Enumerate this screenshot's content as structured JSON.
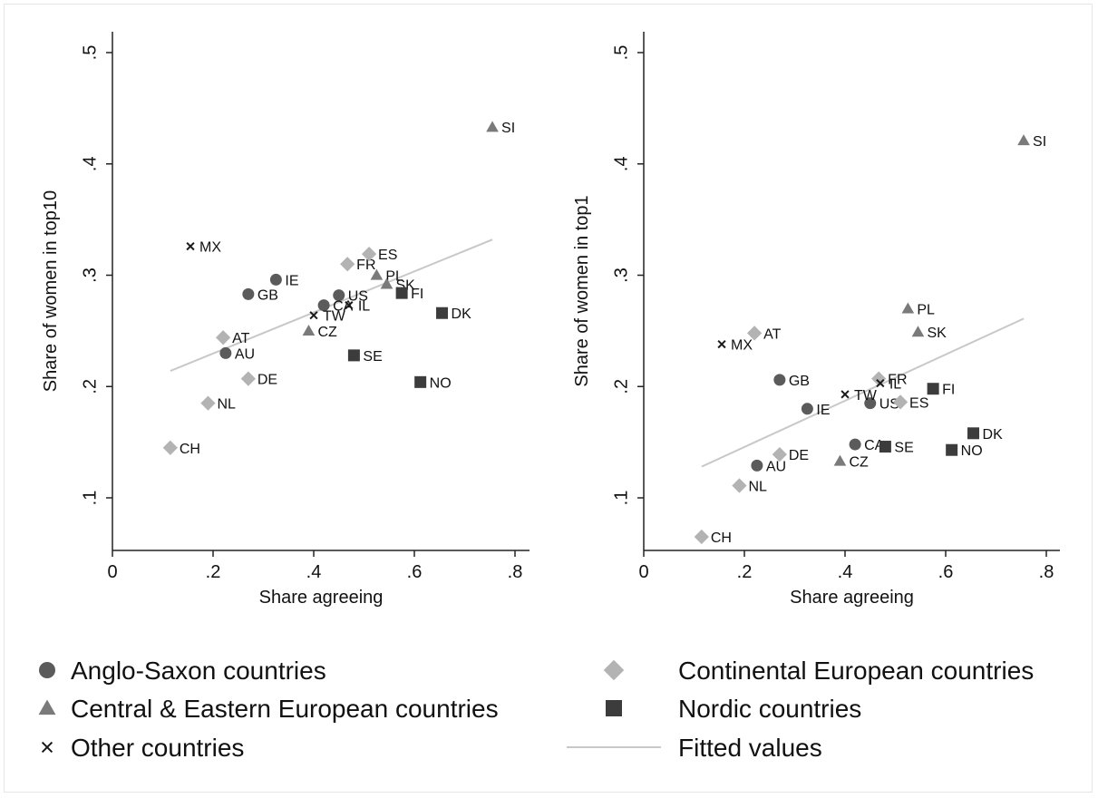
{
  "colors": {
    "anglo": "#5b5b5b",
    "central": "#7a7a7a",
    "continental": "#b3b3b3",
    "nordic": "#3c3c3c",
    "other": "#1a1a1a",
    "fitted": "#c8c8c8",
    "axis": "#222222"
  },
  "legend": {
    "items": [
      {
        "label": "Anglo-Saxon countries",
        "marker": "circle",
        "group": "anglo"
      },
      {
        "label": "Continental European countries",
        "marker": "diamond",
        "group": "continental"
      },
      {
        "label": "Central & Eastern European countries",
        "marker": "triangle",
        "group": "central"
      },
      {
        "label": "Nordic countries",
        "marker": "square",
        "group": "nordic"
      },
      {
        "label": "Other countries",
        "marker": "x",
        "group": "other"
      },
      {
        "label": "Fitted values",
        "marker": "line",
        "group": "fitted"
      }
    ]
  },
  "chart_data": [
    {
      "type": "scatter",
      "xlabel": "Share agreeing",
      "ylabel": "Share of women in top10",
      "xlim": [
        0,
        0.8
      ],
      "ylim": [
        0.1,
        0.5
      ],
      "xticks": [
        0,
        0.2,
        0.4,
        0.6,
        0.8
      ],
      "xtick_labels": [
        "0",
        ".2",
        ".4",
        ".6",
        ".8"
      ],
      "yticks": [
        0.1,
        0.2,
        0.3,
        0.4,
        0.5
      ],
      "ytick_labels": [
        ".1",
        ".2",
        ".3",
        ".4",
        ".5"
      ],
      "fitted_line": {
        "x": [
          0.115,
          0.755
        ],
        "y": [
          0.214,
          0.332
        ]
      },
      "points": [
        {
          "label": "GB",
          "group": "anglo",
          "x": 0.27,
          "y": 0.283
        },
        {
          "label": "IE",
          "group": "anglo",
          "x": 0.325,
          "y": 0.296
        },
        {
          "label": "AU",
          "group": "anglo",
          "x": 0.225,
          "y": 0.23
        },
        {
          "label": "US",
          "group": "anglo",
          "x": 0.45,
          "y": 0.282
        },
        {
          "label": "CA",
          "group": "anglo",
          "x": 0.42,
          "y": 0.273
        },
        {
          "label": "AT",
          "group": "continental",
          "x": 0.22,
          "y": 0.244
        },
        {
          "label": "DE",
          "group": "continental",
          "x": 0.27,
          "y": 0.207
        },
        {
          "label": "NL",
          "group": "continental",
          "x": 0.19,
          "y": 0.185
        },
        {
          "label": "CH",
          "group": "continental",
          "x": 0.115,
          "y": 0.145
        },
        {
          "label": "FR",
          "group": "continental",
          "x": 0.467,
          "y": 0.31
        },
        {
          "label": "ES",
          "group": "continental",
          "x": 0.51,
          "y": 0.319
        },
        {
          "label": "SI",
          "group": "central",
          "x": 0.755,
          "y": 0.433
        },
        {
          "label": "PL",
          "group": "central",
          "x": 0.525,
          "y": 0.3
        },
        {
          "label": "SK",
          "group": "central",
          "x": 0.545,
          "y": 0.292
        },
        {
          "label": "CZ",
          "group": "central",
          "x": 0.39,
          "y": 0.25
        },
        {
          "label": "FI",
          "group": "nordic",
          "x": 0.575,
          "y": 0.284
        },
        {
          "label": "DK",
          "group": "nordic",
          "x": 0.655,
          "y": 0.266
        },
        {
          "label": "SE",
          "group": "nordic",
          "x": 0.48,
          "y": 0.228
        },
        {
          "label": "NO",
          "group": "nordic",
          "x": 0.612,
          "y": 0.204
        },
        {
          "label": "MX",
          "group": "other",
          "x": 0.155,
          "y": 0.326
        },
        {
          "label": "TW",
          "group": "other",
          "x": 0.4,
          "y": 0.264
        },
        {
          "label": "IL",
          "group": "other",
          "x": 0.47,
          "y": 0.273
        }
      ]
    },
    {
      "type": "scatter",
      "xlabel": "Share agreeing",
      "ylabel": "Share of women in top1",
      "xlim": [
        0,
        0.8
      ],
      "ylim": [
        0.1,
        0.5
      ],
      "xticks": [
        0,
        0.2,
        0.4,
        0.6,
        0.8
      ],
      "xtick_labels": [
        "0",
        ".2",
        ".4",
        ".6",
        ".8"
      ],
      "yticks": [
        0.1,
        0.2,
        0.3,
        0.4,
        0.5
      ],
      "ytick_labels": [
        ".1",
        ".2",
        ".3",
        ".4",
        ".5"
      ],
      "fitted_line": {
        "x": [
          0.115,
          0.755
        ],
        "y": [
          0.128,
          0.261
        ]
      },
      "points": [
        {
          "label": "GB",
          "group": "anglo",
          "x": 0.27,
          "y": 0.206
        },
        {
          "label": "IE",
          "group": "anglo",
          "x": 0.325,
          "y": 0.18
        },
        {
          "label": "AU",
          "group": "anglo",
          "x": 0.225,
          "y": 0.129
        },
        {
          "label": "US",
          "group": "anglo",
          "x": 0.45,
          "y": 0.185
        },
        {
          "label": "CA",
          "group": "anglo",
          "x": 0.42,
          "y": 0.148
        },
        {
          "label": "AT",
          "group": "continental",
          "x": 0.22,
          "y": 0.248
        },
        {
          "label": "DE",
          "group": "continental",
          "x": 0.27,
          "y": 0.139
        },
        {
          "label": "NL",
          "group": "continental",
          "x": 0.19,
          "y": 0.111
        },
        {
          "label": "CH",
          "group": "continental",
          "x": 0.115,
          "y": 0.065
        },
        {
          "label": "FR",
          "group": "continental",
          "x": 0.467,
          "y": 0.207
        },
        {
          "label": "ES",
          "group": "continental",
          "x": 0.51,
          "y": 0.186
        },
        {
          "label": "SI",
          "group": "central",
          "x": 0.755,
          "y": 0.421
        },
        {
          "label": "PL",
          "group": "central",
          "x": 0.525,
          "y": 0.27
        },
        {
          "label": "SK",
          "group": "central",
          "x": 0.545,
          "y": 0.249
        },
        {
          "label": "CZ",
          "group": "central",
          "x": 0.39,
          "y": 0.133
        },
        {
          "label": "FI",
          "group": "nordic",
          "x": 0.575,
          "y": 0.198
        },
        {
          "label": "DK",
          "group": "nordic",
          "x": 0.655,
          "y": 0.158
        },
        {
          "label": "SE",
          "group": "nordic",
          "x": 0.48,
          "y": 0.146
        },
        {
          "label": "NO",
          "group": "nordic",
          "x": 0.612,
          "y": 0.143
        },
        {
          "label": "MX",
          "group": "other",
          "x": 0.155,
          "y": 0.238
        },
        {
          "label": "TW",
          "group": "other",
          "x": 0.4,
          "y": 0.193
        },
        {
          "label": "IL",
          "group": "other",
          "x": 0.47,
          "y": 0.203
        }
      ]
    }
  ]
}
